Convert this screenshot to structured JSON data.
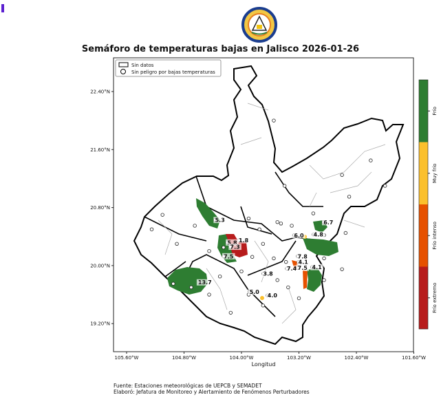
{
  "title": "Semáforo de temperaturas bajas en Jalisco 2026-01-26",
  "logo_text": "Unidad Estatal de Protección Civil y Bomberos Jalisco",
  "footer": {
    "source": "Fuente: Estaciones meteorológicas de UEPCB y SEMADET",
    "author": "Elaboró: Jefatura de Monitoreo y Alertamiento de Fenómenos Perturbadores"
  },
  "legend": {
    "no_data": "Sin datos",
    "no_danger": "Sin peligro por bajas temperaturas"
  },
  "axes": {
    "xlabel": "Longitud",
    "xticks": [
      "105.60°W",
      "104.80°W",
      "104.00°W",
      "103.20°W",
      "102.40°W",
      "101.60°W"
    ],
    "xtick_values": [
      -105.6,
      -104.8,
      -104.0,
      -103.2,
      -102.4,
      -101.6
    ],
    "yticks": [
      "22.40°N",
      "21.60°N",
      "20.80°N",
      "20.00°N",
      "19.20°N"
    ],
    "ytick_values": [
      22.4,
      21.6,
      20.8,
      20.0,
      19.2
    ]
  },
  "colorbar": {
    "categories": [
      {
        "label": "Frío",
        "color": "#2e7d32"
      },
      {
        "label": "Muy frío",
        "color": "#fbc02d"
      },
      {
        "label": "Frío intenso",
        "color": "#e65100"
      },
      {
        "label": "Frío extremo",
        "color": "#b71c1c"
      }
    ]
  },
  "chart_data": {
    "type": "map",
    "title": "Semáforo de temperaturas bajas en Jalisco 2026-01-26",
    "xlabel": "Longitud",
    "labeled_stations": [
      {
        "lon": -104.3,
        "lat": 20.61,
        "value": "5.3"
      },
      {
        "lon": -103.97,
        "lat": 20.33,
        "value": "1.8"
      },
      {
        "lon": -104.13,
        "lat": 20.3,
        "value": "5.8"
      },
      {
        "lon": -104.09,
        "lat": 20.24,
        "value": "7.3"
      },
      {
        "lon": -104.18,
        "lat": 20.11,
        "value": "7.5"
      },
      {
        "lon": -104.51,
        "lat": 19.75,
        "value": "13.7"
      },
      {
        "lon": -103.63,
        "lat": 19.87,
        "value": "3.8"
      },
      {
        "lon": -103.82,
        "lat": 19.62,
        "value": "5.0"
      },
      {
        "lon": -103.57,
        "lat": 19.57,
        "value": "4.0"
      },
      {
        "lon": -102.79,
        "lat": 20.58,
        "value": "6.7"
      },
      {
        "lon": -103.2,
        "lat": 20.4,
        "value": "6.0"
      },
      {
        "lon": -102.93,
        "lat": 20.41,
        "value": "4.8"
      },
      {
        "lon": -103.15,
        "lat": 20.11,
        "value": "7.8"
      },
      {
        "lon": -103.14,
        "lat": 20.03,
        "value": "4.1"
      },
      {
        "lon": -103.3,
        "lat": 19.94,
        "value": "7.4"
      },
      {
        "lon": -103.15,
        "lat": 19.95,
        "value": "7.5"
      },
      {
        "lon": -102.95,
        "lat": 19.96,
        "value": "4.1"
      }
    ],
    "safe_stations": [
      [
        -103.55,
        22.0
      ],
      [
        -103.4,
        21.1
      ],
      [
        -102.6,
        21.25
      ],
      [
        -102.2,
        21.45
      ],
      [
        -102.0,
        21.1
      ],
      [
        -102.5,
        20.95
      ],
      [
        -105.1,
        20.7
      ],
      [
        -105.25,
        20.5
      ],
      [
        -104.9,
        20.3
      ],
      [
        -104.65,
        20.55
      ],
      [
        -104.45,
        20.2
      ],
      [
        -104.25,
        20.25
      ],
      [
        -103.9,
        20.65
      ],
      [
        -103.75,
        20.5
      ],
      [
        -103.5,
        20.6
      ],
      [
        -103.45,
        20.58
      ],
      [
        -103.3,
        20.55
      ],
      [
        -103.0,
        20.72
      ],
      [
        -102.85,
        20.42
      ],
      [
        -102.55,
        20.45
      ],
      [
        -103.7,
        20.3
      ],
      [
        -103.85,
        20.12
      ],
      [
        -104.0,
        19.92
      ],
      [
        -104.3,
        19.85
      ],
      [
        -104.7,
        19.7
      ],
      [
        -104.95,
        19.75
      ],
      [
        -104.45,
        19.6
      ],
      [
        -103.5,
        19.8
      ],
      [
        -103.35,
        19.7
      ],
      [
        -103.2,
        19.55
      ],
      [
        -102.85,
        19.8
      ],
      [
        -102.6,
        19.95
      ],
      [
        -103.7,
        19.45
      ],
      [
        -104.15,
        19.35
      ],
      [
        -103.9,
        19.6
      ],
      [
        -102.85,
        20.1
      ],
      [
        -103.38,
        20.05
      ],
      [
        -103.55,
        20.1
      ]
    ]
  }
}
